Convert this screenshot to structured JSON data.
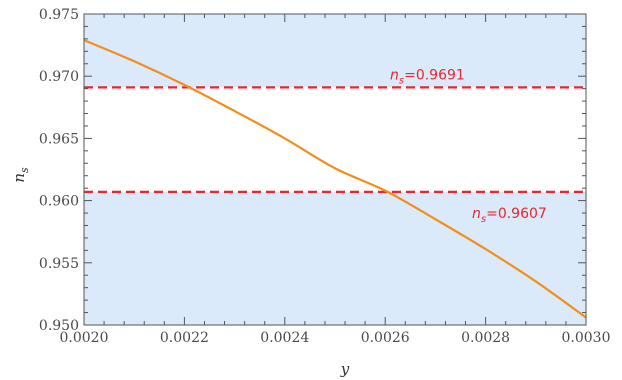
{
  "chart_data": {
    "type": "line",
    "title": "",
    "xlabel": "y",
    "ylabel": "n",
    "ylabel_subscript": "s",
    "xlim": [
      0.002,
      0.003
    ],
    "ylim": [
      0.95,
      0.975
    ],
    "x_ticks": [
      0.002,
      0.0022,
      0.0024,
      0.0026,
      0.0028,
      0.003
    ],
    "x_tick_labels": [
      "0.0020",
      "0.0022",
      "0.0024",
      "0.0026",
      "0.0028",
      "0.0030"
    ],
    "y_ticks": [
      0.95,
      0.955,
      0.96,
      0.965,
      0.97,
      0.975
    ],
    "y_tick_labels": [
      "0.950",
      "0.955",
      "0.960",
      "0.965",
      "0.970",
      "0.975"
    ],
    "grid": false,
    "series": [
      {
        "x": [
          0.002,
          0.0021,
          0.0022,
          0.0023,
          0.0024,
          0.0025,
          0.0026,
          0.0027,
          0.0028,
          0.0029,
          0.003
        ],
        "y": [
          0.9729,
          0.9712,
          0.9693,
          0.9672,
          0.965,
          0.9626,
          0.9608,
          0.9585,
          0.9561,
          0.9535,
          0.9506
        ],
        "color": "#f28e1c"
      }
    ],
    "reference_lines": [
      {
        "y": 0.9691,
        "label_prefix": "n",
        "label_subscript": "s",
        "label_value": "=0.9691",
        "color": "#e8262f",
        "style": "dashed"
      },
      {
        "y": 0.9607,
        "label_prefix": "n",
        "label_subscript": "s",
        "label_value": "=0.9607",
        "color": "#e8262f",
        "style": "dashed"
      }
    ],
    "shading": [
      {
        "y_from": 0.9691,
        "y_to": 0.975,
        "color": "#dbeafb"
      },
      {
        "y_from": 0.95,
        "y_to": 0.9607,
        "color": "#dbeafb"
      }
    ]
  }
}
